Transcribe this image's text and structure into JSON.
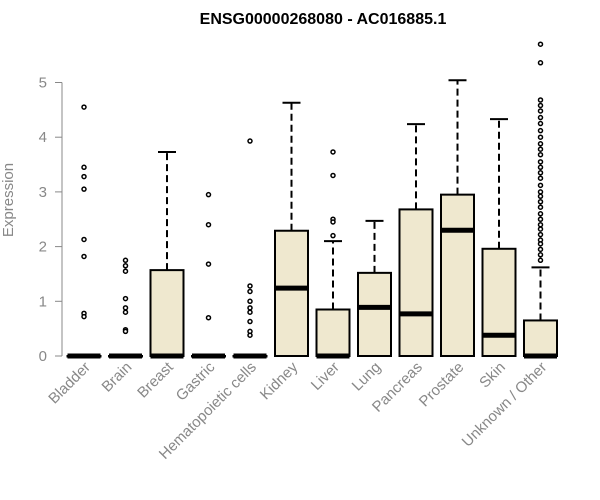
{
  "chart_data": {
    "type": "boxplot",
    "title": "ENSG00000268080 - AC016885.1",
    "ylabel": "Expression",
    "xlabel": "",
    "ylim": [
      0,
      5.8
    ],
    "yticks": [
      0,
      1,
      2,
      3,
      4,
      5
    ],
    "grid": false,
    "legend": "none",
    "box_fill": "#efe8cf",
    "box_stroke": "#000000",
    "axis_color": "#888888",
    "categories": [
      "Bladder",
      "Brain",
      "Breast",
      "Gastric",
      "Hematopoietic cells",
      "Kidney",
      "Liver",
      "Lung",
      "Pancreas",
      "Prostate",
      "Skin",
      "Unknown / Other"
    ],
    "boxes": [
      {
        "q1": 0,
        "median": 0,
        "q3": 0,
        "whisker_low": 0,
        "whisker_high": 0,
        "outliers": [
          4.55,
          3.45,
          3.28,
          3.05,
          2.13,
          1.82,
          0.78,
          0.72
        ]
      },
      {
        "q1": 0,
        "median": 0,
        "q3": 0,
        "whisker_low": 0,
        "whisker_high": 0,
        "outliers": [
          1.75,
          1.65,
          1.55,
          1.05,
          0.88,
          0.8,
          0.48,
          0.45
        ]
      },
      {
        "q1": 0,
        "median": 0,
        "q3": 1.57,
        "whisker_low": 0,
        "whisker_high": 3.73,
        "outliers": []
      },
      {
        "q1": 0,
        "median": 0,
        "q3": 0,
        "whisker_low": 0,
        "whisker_high": 0,
        "outliers": [
          2.95,
          2.4,
          1.68,
          0.7
        ]
      },
      {
        "q1": 0,
        "median": 0,
        "q3": 0,
        "whisker_low": 0,
        "whisker_high": 0,
        "outliers": [
          3.93,
          1.28,
          1.18,
          1.0,
          0.88,
          0.8,
          0.63,
          0.45,
          0.38
        ]
      },
      {
        "q1": 0,
        "median": 1.24,
        "q3": 2.29,
        "whisker_low": 0,
        "whisker_high": 4.63,
        "outliers": []
      },
      {
        "q1": 0,
        "median": 0,
        "q3": 0.85,
        "whisker_low": 0,
        "whisker_high": 2.1,
        "outliers": [
          3.73,
          3.3,
          2.5,
          2.45,
          2.2
        ]
      },
      {
        "q1": 0,
        "median": 0.89,
        "q3": 1.52,
        "whisker_low": 0,
        "whisker_high": 2.47,
        "outliers": []
      },
      {
        "q1": 0,
        "median": 0.77,
        "q3": 2.68,
        "whisker_low": 0,
        "whisker_high": 4.24,
        "outliers": []
      },
      {
        "q1": 0,
        "median": 2.3,
        "q3": 2.95,
        "whisker_low": 0,
        "whisker_high": 5.04,
        "outliers": []
      },
      {
        "q1": 0,
        "median": 0.38,
        "q3": 1.96,
        "whisker_low": 0,
        "whisker_high": 4.33,
        "outliers": []
      },
      {
        "q1": 0,
        "median": 0,
        "q3": 0.65,
        "whisker_low": 0,
        "whisker_high": 1.62,
        "outliers": [
          5.7,
          5.36,
          4.68,
          4.58,
          4.48,
          4.36,
          4.25,
          4.12,
          4.0,
          3.88,
          3.78,
          3.68,
          3.55,
          3.45,
          3.35,
          3.25,
          3.12,
          3.0,
          2.92,
          2.82,
          2.72,
          2.6,
          2.5,
          2.4,
          2.32,
          2.22,
          2.12,
          2.05,
          1.95,
          1.85,
          1.75
        ]
      }
    ]
  }
}
